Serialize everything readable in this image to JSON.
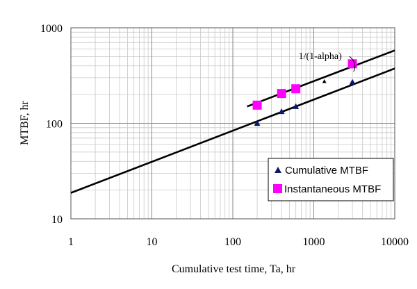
{
  "chart_data": {
    "type": "scatter",
    "title": "",
    "xlabel": "Cumulative test time, Ta, hr",
    "ylabel": "MTBF, hr",
    "x_scale": "log",
    "y_scale": "log",
    "xlim": [
      1,
      10000
    ],
    "ylim": [
      10,
      1000
    ],
    "x_ticks": [
      "1",
      "10",
      "100",
      "1000",
      "10000"
    ],
    "y_ticks": [
      "10",
      "100",
      "1000"
    ],
    "grid": true,
    "legend_position": "bottom-right",
    "series": [
      {
        "name": "Cumulative MTBF",
        "marker": "triangle",
        "color": "#0a1a6b",
        "x": [
          200,
          400,
          600,
          3000
        ],
        "y": [
          100,
          133,
          150,
          270
        ]
      },
      {
        "name": "Instantaneous MTBF",
        "marker": "square",
        "color": "#ff00ff",
        "x": [
          200,
          400,
          600,
          3000
        ],
        "y": [
          155,
          205,
          230,
          420
        ]
      }
    ],
    "fit_lines": [
      {
        "from": [
          1,
          18.7
        ],
        "to": [
          10000,
          375
        ],
        "color": "#000000"
      },
      {
        "from": [
          150,
          150
        ],
        "to": [
          10000,
          580
        ],
        "color": "#000000"
      }
    ],
    "extra_points": [
      {
        "x": 1350,
        "y": 275,
        "marker": "triangle",
        "color": "#000000"
      }
    ],
    "annotations": [
      {
        "text": "1/(1-alpha)",
        "x": 1200,
        "y": 470
      }
    ]
  }
}
